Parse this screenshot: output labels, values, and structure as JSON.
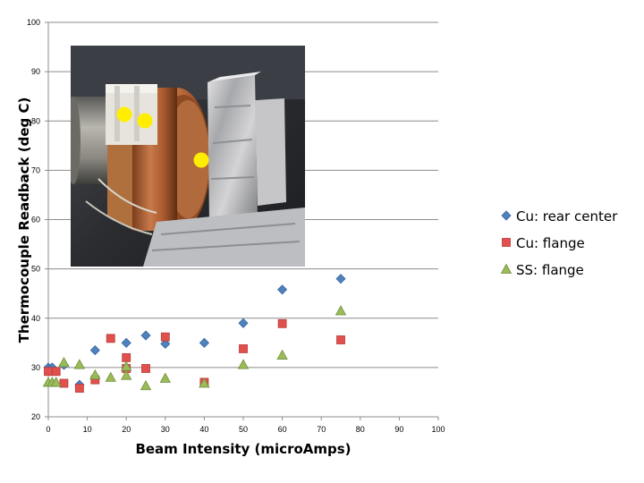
{
  "chart_data": {
    "type": "scatter",
    "xlabel": "Beam Intensity (microAmps)",
    "ylabel": "Thermocouple Readback (deg C)",
    "xlim": [
      0,
      100
    ],
    "ylim": [
      20,
      100
    ],
    "x_ticks": [
      0,
      10,
      20,
      30,
      40,
      50,
      60,
      70,
      80,
      90,
      100
    ],
    "y_ticks": [
      20,
      30,
      40,
      50,
      60,
      70,
      80,
      90,
      100
    ],
    "grid": "horizontal",
    "legend": "right",
    "series": [
      {
        "name": "Cu: rear center",
        "marker": "diamond",
        "color": "#4f81bd",
        "points": [
          [
            0,
            30
          ],
          [
            1,
            30
          ],
          [
            4,
            30.5
          ],
          [
            8,
            26.5
          ],
          [
            12,
            33.5
          ],
          [
            20,
            35
          ],
          [
            25,
            36.5
          ],
          [
            30,
            34.8
          ],
          [
            40,
            35
          ],
          [
            50,
            39
          ],
          [
            60,
            45.8
          ],
          [
            75,
            48
          ]
        ]
      },
      {
        "name": "Cu: flange",
        "marker": "square",
        "color": "#e0504d",
        "points": [
          [
            0,
            29.2
          ],
          [
            2,
            29.2
          ],
          [
            4,
            26.8
          ],
          [
            8,
            25.8
          ],
          [
            12,
            27.5
          ],
          [
            16,
            35.9
          ],
          [
            20,
            32
          ],
          [
            20,
            29.8
          ],
          [
            25,
            29.8
          ],
          [
            30,
            36.2
          ],
          [
            40,
            27
          ],
          [
            50,
            33.8
          ],
          [
            60,
            38.9
          ],
          [
            75,
            35.6
          ]
        ]
      },
      {
        "name": "SS: flange",
        "marker": "triangle",
        "color": "#9bbb59",
        "points": [
          [
            0,
            27
          ],
          [
            1,
            27
          ],
          [
            2,
            27
          ],
          [
            4,
            31
          ],
          [
            8,
            30.6
          ],
          [
            12,
            28.5
          ],
          [
            16,
            28
          ],
          [
            20,
            28.4
          ],
          [
            20,
            30.2
          ],
          [
            25,
            26.3
          ],
          [
            30,
            27.8
          ],
          [
            40,
            26.8
          ],
          [
            50,
            30.6
          ],
          [
            60,
            32.5
          ],
          [
            75,
            41.5
          ]
        ]
      }
    ]
  },
  "photo": {
    "type": "photograph",
    "marker_color": "#ffee00"
  }
}
